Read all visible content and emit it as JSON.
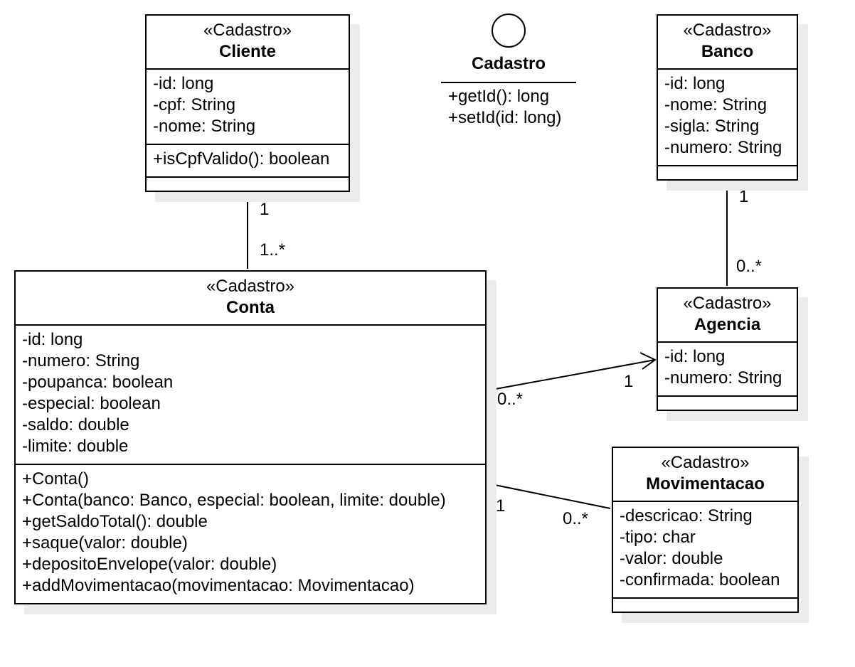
{
  "classes": [
    {
      "id": "cliente",
      "stereotype": "«Cadastro»",
      "name": "Cliente",
      "attributes": [
        "-id: long",
        "-cpf: String",
        "-nome: String"
      ],
      "methods": [
        "+isCpfValido(): boolean"
      ],
      "extra": []
    },
    {
      "id": "banco",
      "stereotype": "«Cadastro»",
      "name": "Banco",
      "attributes": [
        "-id: long",
        "-nome: String",
        "-sigla: String",
        "-numero: String"
      ],
      "methods": [],
      "extra": null
    },
    {
      "id": "conta",
      "stereotype": "«Cadastro»",
      "name": "Conta",
      "attributes": [
        "-id: long",
        "-numero: String",
        "-poupanca: boolean",
        "-especial: boolean",
        "-saldo: double",
        "-limite: double"
      ],
      "methods": [
        "+Conta()",
        "+Conta(banco: Banco, especial: boolean, limite: double)",
        "+getSaldoTotal(): double",
        "+saque(valor: double)",
        "+depositoEnvelope(valor: double)",
        "+addMovimentacao(movimentacao: Movimentacao)"
      ],
      "extra": null
    },
    {
      "id": "agencia",
      "stereotype": "«Cadastro»",
      "name": "Agencia",
      "attributes": [
        "-id: long",
        "-numero: String"
      ],
      "methods": [],
      "extra": null
    },
    {
      "id": "movimentacao",
      "stereotype": "«Cadastro»",
      "name": "Movimentacao",
      "attributes": [
        "-descricao: String",
        "-tipo: char",
        "-valor: double",
        "-confirmada: boolean"
      ],
      "methods": [],
      "extra": null
    }
  ],
  "interface": {
    "name": "Cadastro",
    "methods": [
      "+getId(): long",
      "+setId(id: long)"
    ]
  },
  "associations": [
    {
      "from": "cliente",
      "to": "conta",
      "from_mult": "1",
      "to_mult": "1..*",
      "navigable": false
    },
    {
      "from": "banco",
      "to": "agencia",
      "from_mult": "1",
      "to_mult": "0..*",
      "navigable": false
    },
    {
      "from": "conta",
      "to": "agencia",
      "from_mult": "0..*",
      "to_mult": "1",
      "navigable": true
    },
    {
      "from": "conta",
      "to": "movimentacao",
      "from_mult": "1",
      "to_mult": "0..*",
      "navigable": false
    }
  ]
}
